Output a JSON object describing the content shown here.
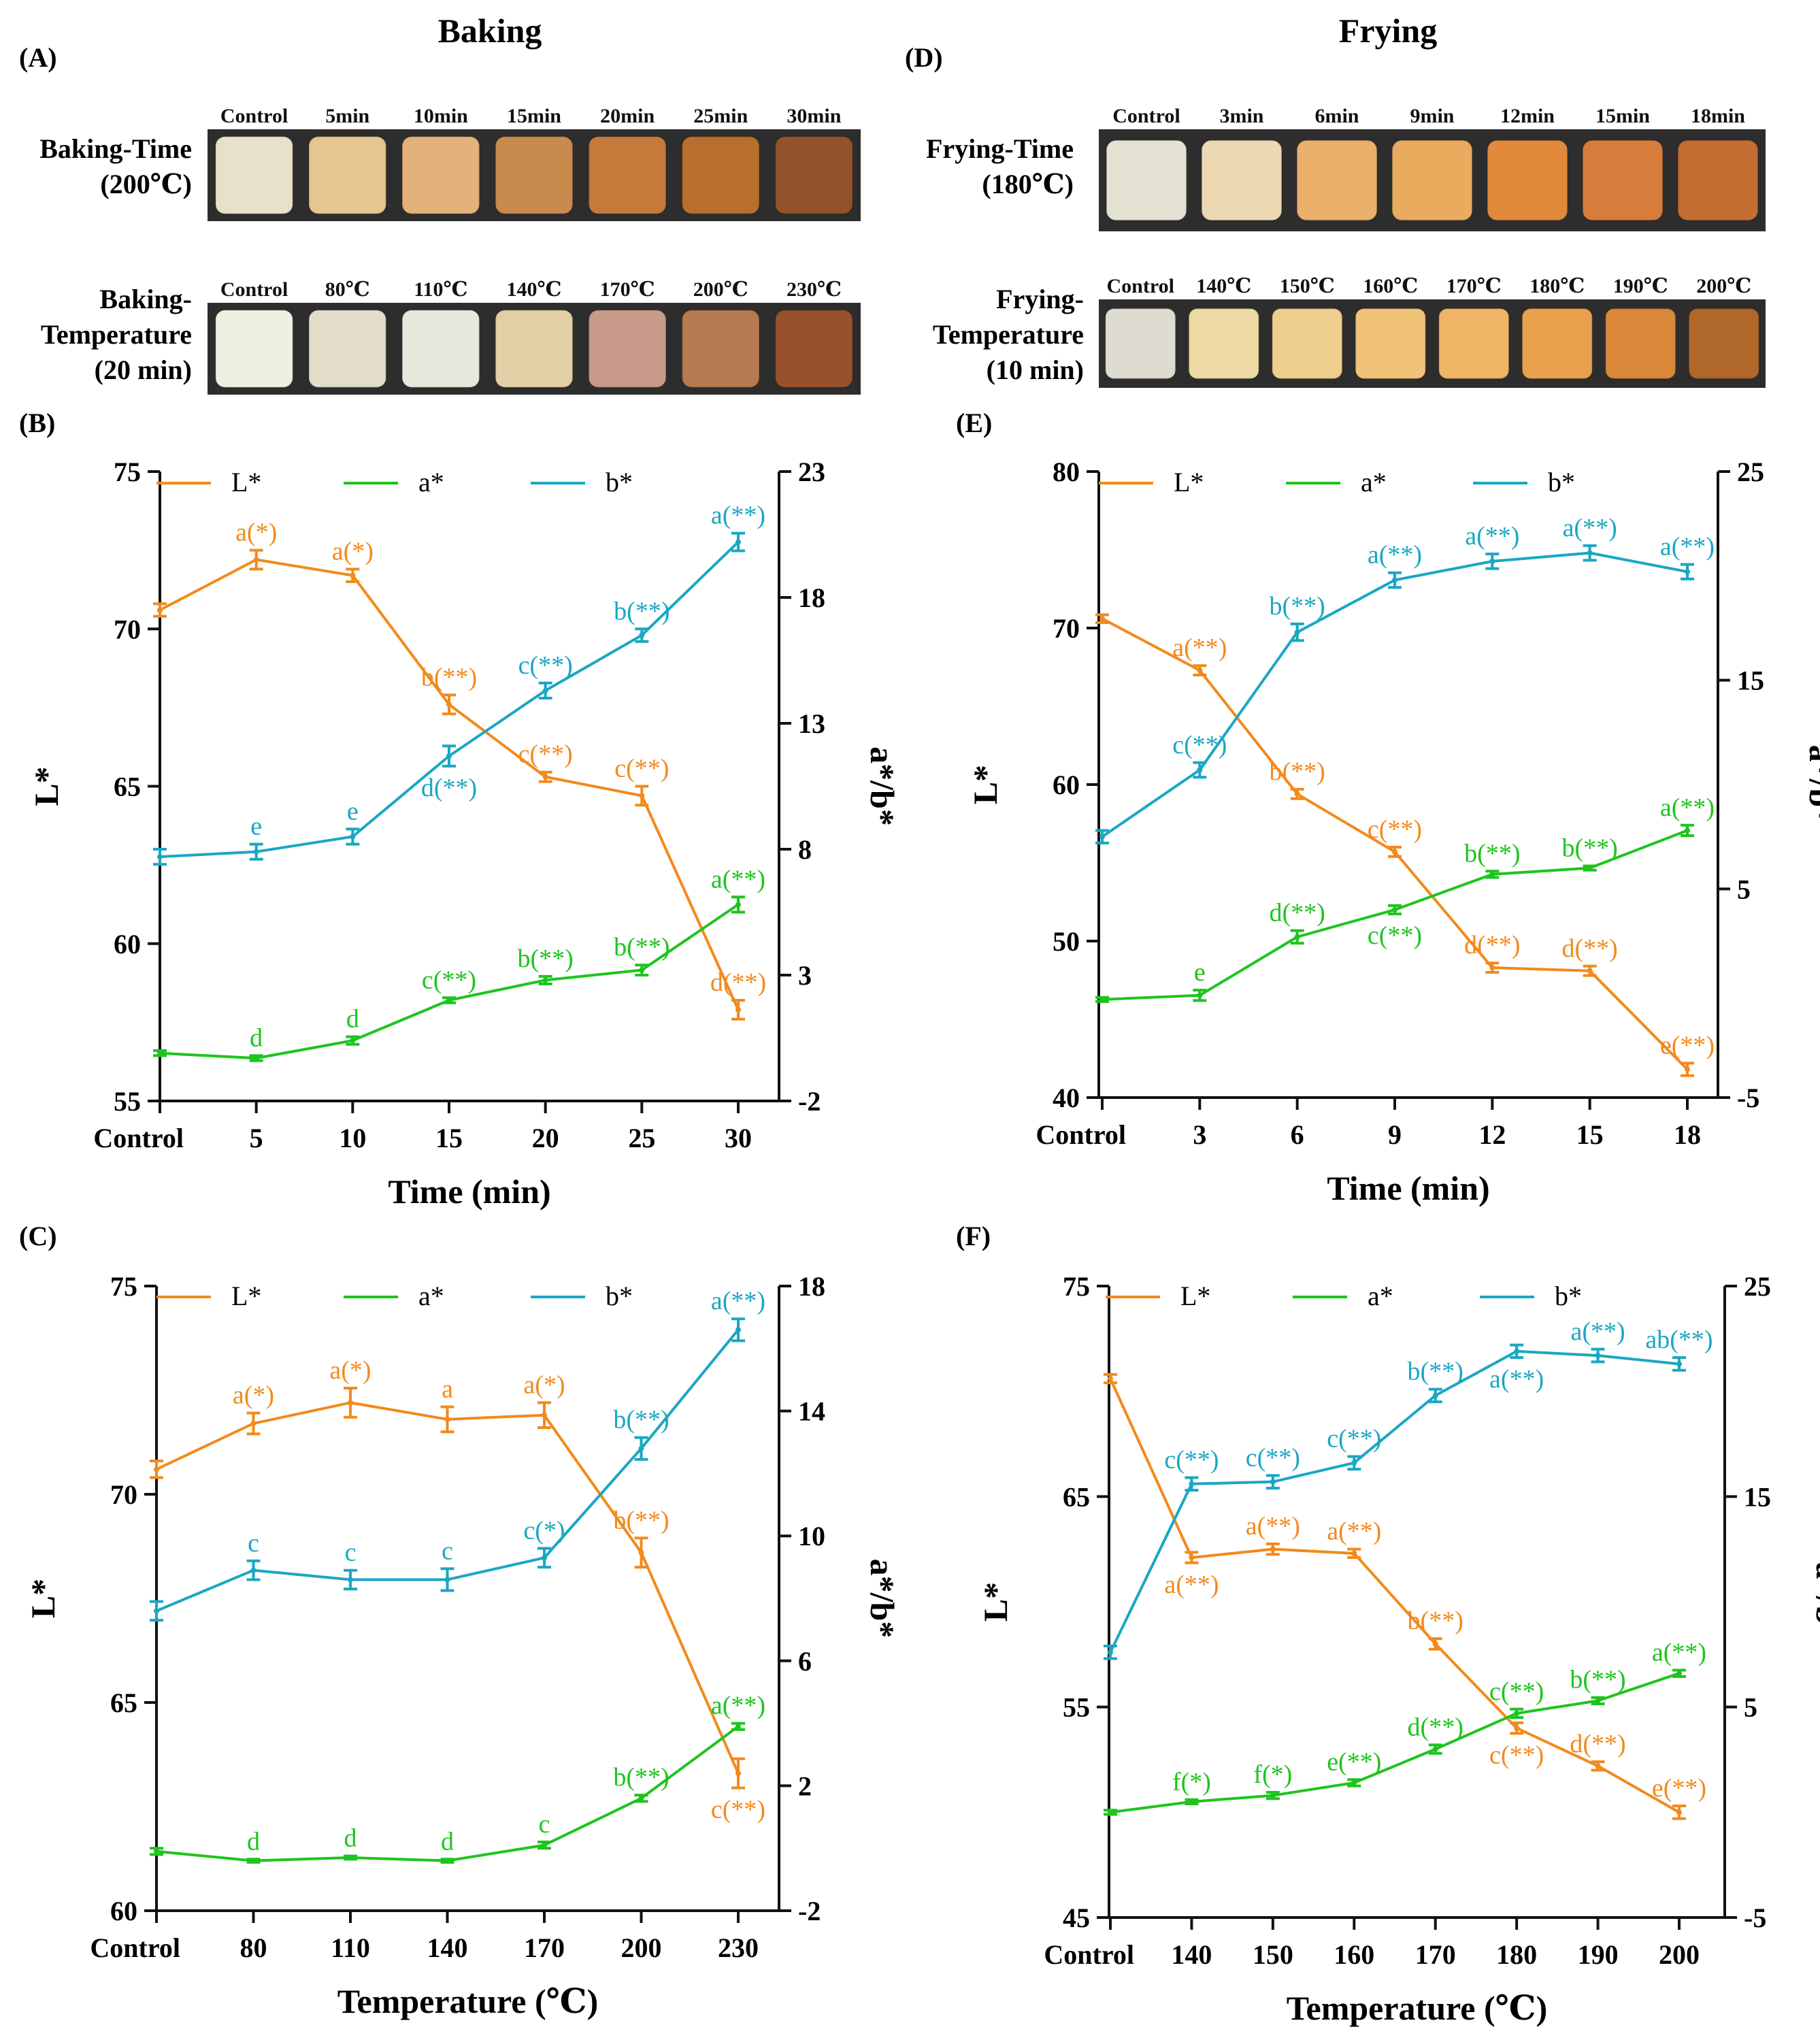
{
  "colors": {
    "L": "#f28a1c",
    "a": "#1ec41e",
    "b": "#1aa7c2",
    "axis": "#111111",
    "strip": "#2d2d2d"
  },
  "sections": {
    "baking": "Baking",
    "frying": "Frying"
  },
  "photo_panels": {
    "A": {
      "letter": "(A)",
      "rows": [
        {
          "label": [
            "Baking-Time",
            "(200℃)"
          ],
          "samples": [
            "Control",
            "5min",
            "10min",
            "15min",
            "20min",
            "25min",
            "30min"
          ],
          "colors": [
            "#e8e0c8",
            "#e6c58e",
            "#e2b27a",
            "#c98a4e",
            "#c47a3a",
            "#b86e2c",
            "#93522a"
          ]
        },
        {
          "label": [
            "Baking-",
            "Temperature",
            "(20 min)"
          ],
          "samples": [
            "Control",
            "80℃",
            "110℃",
            "140℃",
            "170℃",
            "200℃",
            "230℃"
          ],
          "colors": [
            "#eef0e2",
            "#e2dccb",
            "#e8e7dc",
            "#e3cfa5",
            "#c89a8a",
            "#b67a50",
            "#97512c"
          ]
        }
      ]
    },
    "D": {
      "letter": "(D)",
      "rows": [
        {
          "label": [
            "Frying-Time",
            "(180℃)"
          ],
          "samples": [
            "Control",
            "3min",
            "6min",
            "9min",
            "12min",
            "15min",
            "18min"
          ],
          "colors": [
            "#e4e2d2",
            "#ecd8b2",
            "#eab06c",
            "#e9ac5f",
            "#e18a3c",
            "#d77c3a",
            "#c46e34"
          ]
        },
        {
          "label": [
            "Frying-",
            "Temperature",
            "(10 min)"
          ],
          "samples": [
            "Control",
            "140℃",
            "150℃",
            "160℃",
            "170℃",
            "180℃",
            "190℃",
            "200℃"
          ],
          "colors": [
            "#dedcd0",
            "#ecd9a4",
            "#efcf8e",
            "#f0c378",
            "#f0b466",
            "#e9a14e",
            "#d9883a",
            "#b0672a"
          ]
        }
      ]
    }
  },
  "chart_data": [
    {
      "id": "B",
      "letter": "(B)",
      "type": "line",
      "categories": [
        "Control",
        "5",
        "10",
        "15",
        "20",
        "25",
        "30"
      ],
      "xlabel": "Time (min)",
      "ylabel": "L*",
      "y2label": "a*/b*",
      "ylim": [
        55,
        75
      ],
      "yticks": [
        "55",
        "60",
        "65",
        "70",
        "75"
      ],
      "y2lim": [
        -2,
        23
      ],
      "y2ticks": [
        "-2",
        "3",
        "8",
        "13",
        "18",
        "23"
      ],
      "legend": [
        "L*",
        "a*",
        "b*"
      ],
      "series": [
        {
          "name": "L*",
          "axis": "left",
          "values": [
            70.6,
            72.2,
            71.7,
            67.6,
            65.3,
            64.7,
            57.9
          ],
          "errors": [
            0.2,
            0.3,
            0.2,
            0.3,
            0.15,
            0.3,
            0.3
          ],
          "labels": [
            "",
            "a(*)",
            "a(*)",
            "b(**)",
            "c(**)",
            "c(**)",
            "d(**)"
          ],
          "label_pos": [
            "",
            "above",
            "above",
            "above",
            "above",
            "above",
            "above"
          ]
        },
        {
          "name": "a*",
          "axis": "right",
          "values": [
            -0.1,
            -0.3,
            0.4,
            2.0,
            2.8,
            3.2,
            5.8
          ],
          "errors": [
            0.1,
            0.1,
            0.15,
            0.1,
            0.15,
            0.2,
            0.3
          ],
          "labels": [
            "",
            "d",
            "d",
            "c(**)",
            "b(**)",
            "b(**)",
            "a(**)"
          ],
          "label_pos": [
            "",
            "above",
            "above",
            "above",
            "above",
            "above",
            "above"
          ]
        },
        {
          "name": "b*",
          "axis": "right",
          "values": [
            7.7,
            7.9,
            8.5,
            11.7,
            14.3,
            16.5,
            20.2
          ],
          "errors": [
            0.3,
            0.3,
            0.3,
            0.4,
            0.3,
            0.25,
            0.35
          ],
          "labels": [
            "",
            "e",
            "e",
            "d(**)",
            "c(**)",
            "b(**)",
            "a(**)"
          ],
          "label_pos": [
            "",
            "above",
            "above",
            "below",
            "above",
            "above",
            "above"
          ]
        }
      ]
    },
    {
      "id": "E",
      "letter": "(E)",
      "type": "line",
      "categories": [
        "Control",
        "3",
        "6",
        "9",
        "12",
        "15",
        "18"
      ],
      "xlabel": "Time (min)",
      "ylabel": "L*",
      "y2label": "a*/b*",
      "ylim": [
        40,
        80
      ],
      "yticks": [
        "40",
        "50",
        "60",
        "70",
        "80"
      ],
      "y2lim": [
        -5,
        25
      ],
      "y2ticks": [
        "-5",
        "5",
        "15",
        "25"
      ],
      "legend": [
        "L*",
        "a*",
        "b*"
      ],
      "series": [
        {
          "name": "L*",
          "axis": "left",
          "values": [
            70.6,
            67.3,
            59.4,
            55.7,
            48.3,
            48.1,
            41.8
          ],
          "errors": [
            0.25,
            0.3,
            0.3,
            0.3,
            0.3,
            0.3,
            0.4
          ],
          "labels": [
            "",
            "a(**)",
            "b(**)",
            "c(**)",
            "d(**)",
            "d(**)",
            "e(**)"
          ],
          "label_pos": [
            "",
            "above",
            "above",
            "above",
            "above",
            "above",
            "above"
          ]
        },
        {
          "name": "a*",
          "axis": "right",
          "values": [
            -0.3,
            -0.1,
            2.7,
            4.0,
            5.7,
            6.0,
            7.8
          ],
          "errors": [
            0.1,
            0.25,
            0.3,
            0.2,
            0.15,
            0.1,
            0.25
          ],
          "labels": [
            "",
            "e",
            "d(**)",
            "c(**)",
            "b(**)",
            "b(**)",
            "a(**)"
          ],
          "label_pos": [
            "",
            "above",
            "above",
            "below",
            "above",
            "above",
            "above"
          ]
        },
        {
          "name": "b*",
          "axis": "right",
          "values": [
            7.5,
            10.7,
            17.3,
            19.8,
            20.7,
            21.1,
            20.2
          ],
          "errors": [
            0.3,
            0.35,
            0.4,
            0.35,
            0.35,
            0.35,
            0.35
          ],
          "labels": [
            "",
            "c(**)",
            "b(**)",
            "a(**)",
            "a(**)",
            "a(**)",
            "a(**)"
          ],
          "label_pos": [
            "",
            "above",
            "above",
            "above",
            "above",
            "above",
            "above"
          ]
        }
      ]
    },
    {
      "id": "C",
      "letter": "(C)",
      "type": "line",
      "categories": [
        "Control",
        "80",
        "110",
        "140",
        "170",
        "200",
        "230"
      ],
      "xlabel": "Temperature (℃)",
      "ylabel": "L*",
      "y2label": "a*/b*",
      "ylim": [
        60,
        75
      ],
      "yticks": [
        "60",
        "65",
        "70",
        "75"
      ],
      "y2lim": [
        -2,
        18
      ],
      "y2ticks": [
        "-2",
        "2",
        "6",
        "10",
        "14",
        "18"
      ],
      "legend": [
        "L*",
        "a*",
        "b*"
      ],
      "series": [
        {
          "name": "L*",
          "axis": "left",
          "values": [
            70.6,
            71.7,
            72.2,
            71.8,
            71.9,
            68.6,
            63.3
          ],
          "errors": [
            0.2,
            0.25,
            0.35,
            0.3,
            0.3,
            0.35,
            0.35
          ],
          "labels": [
            "",
            "a(*)",
            "a(*)",
            "a",
            "a(*)",
            "b(**)",
            "c(**)"
          ],
          "label_pos": [
            "",
            "above",
            "above",
            "above",
            "above",
            "above",
            "below"
          ]
        },
        {
          "name": "a*",
          "axis": "right",
          "values": [
            -0.1,
            -0.4,
            -0.3,
            -0.4,
            0.1,
            1.6,
            3.9
          ],
          "errors": [
            0.1,
            0.05,
            0.05,
            0.05,
            0.1,
            0.1,
            0.1
          ],
          "labels": [
            "",
            "d",
            "d",
            "d",
            "c",
            "b(**)",
            "a(**)"
          ],
          "label_pos": [
            "",
            "above",
            "above",
            "above",
            "above",
            "above",
            "above"
          ]
        },
        {
          "name": "b*",
          "axis": "right",
          "values": [
            7.6,
            8.9,
            8.6,
            8.6,
            9.3,
            12.8,
            16.6
          ],
          "errors": [
            0.3,
            0.3,
            0.3,
            0.35,
            0.3,
            0.35,
            0.35
          ],
          "labels": [
            "",
            "c",
            "c",
            "c",
            "c(*)",
            "b(**)",
            "a(**)"
          ],
          "label_pos": [
            "",
            "above",
            "above",
            "above",
            "above",
            "above",
            "above"
          ]
        }
      ]
    },
    {
      "id": "F",
      "letter": "(F)",
      "type": "line",
      "categories": [
        "Control",
        "140",
        "150",
        "160",
        "170",
        "180",
        "190",
        "200"
      ],
      "xlabel": "Temperature (℃)",
      "ylabel": "L*",
      "y2label": "a*/b*",
      "ylim": [
        45,
        75
      ],
      "yticks": [
        "45",
        "55",
        "65",
        "75"
      ],
      "y2lim": [
        -5,
        25
      ],
      "y2ticks": [
        "-5",
        "5",
        "15",
        "25"
      ],
      "legend": [
        "L*",
        "a*",
        "b*"
      ],
      "series": [
        {
          "name": "L*",
          "axis": "left",
          "values": [
            70.6,
            62.1,
            62.5,
            62.3,
            58.0,
            54.0,
            52.2,
            50.0
          ],
          "errors": [
            0.2,
            0.25,
            0.25,
            0.2,
            0.25,
            0.25,
            0.2,
            0.3
          ],
          "labels": [
            "",
            "a(**)",
            "a(**)",
            "a(**)",
            "b(**)",
            "c(**)",
            "d(**)",
            "e(**)"
          ],
          "label_pos": [
            "",
            "below",
            "above",
            "above",
            "above",
            "below",
            "above",
            "above"
          ]
        },
        {
          "name": "a*",
          "axis": "right",
          "values": [
            0.0,
            0.5,
            0.8,
            1.4,
            3.0,
            4.7,
            5.3,
            6.6
          ],
          "errors": [
            0.1,
            0.1,
            0.15,
            0.15,
            0.2,
            0.2,
            0.15,
            0.15
          ],
          "labels": [
            "",
            "f(*)",
            "f(*)",
            "e(**)",
            "d(**)",
            "c(**)",
            "b(**)",
            "a(**)"
          ],
          "label_pos": [
            "",
            "above",
            "above",
            "above",
            "above",
            "above",
            "above",
            "above"
          ]
        },
        {
          "name": "b*",
          "axis": "right",
          "values": [
            7.6,
            15.6,
            15.7,
            16.6,
            19.8,
            21.9,
            21.7,
            21.3
          ],
          "errors": [
            0.3,
            0.3,
            0.3,
            0.3,
            0.3,
            0.3,
            0.3,
            0.3
          ],
          "labels": [
            "",
            "c(**)",
            "c(**)",
            "c(**)",
            "b(**)",
            "a(**)",
            "a(**)",
            "ab(**)"
          ],
          "label_pos": [
            "",
            "above",
            "above",
            "above",
            "above",
            "below",
            "above",
            "above"
          ]
        }
      ]
    }
  ]
}
